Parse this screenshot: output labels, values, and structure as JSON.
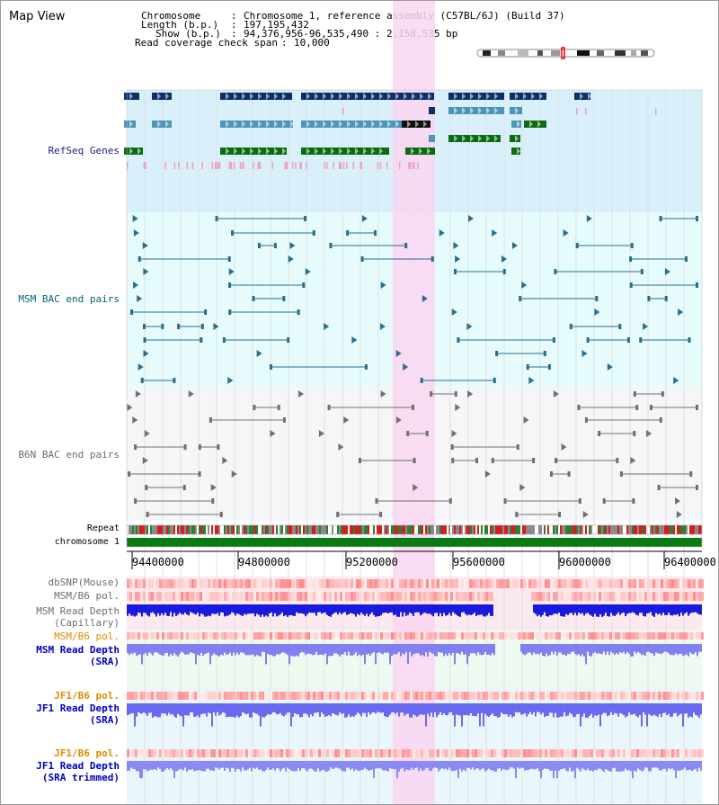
{
  "window_title": "Map View",
  "info": {
    "chromosome_label": "Chromosome",
    "chromosome_value": "Chromosome 1, reference assembly (C57BL/6J) (Build 37)",
    "length_label": "Length (b.p.)",
    "length_value": "197,195,432",
    "show_label": "Show (b.p.)",
    "show_value": "94,376,956-96,535,490 : 2,158,535 bp",
    "coverage_label": "Read coverage check span",
    "coverage_value": "10,000"
  },
  "tracks": {
    "refseq": "RefSeq Genes",
    "msm_bac": "MSM BAC end pairs",
    "b6n_bac": "B6N BAC end pairs",
    "repeat": "Repeat",
    "chromosome": "chromosome 1"
  },
  "axis": {
    "ticks": [
      "94400000",
      "94800000",
      "95200000",
      "95600000",
      "96000000",
      "96400000"
    ]
  },
  "lower_tracks": {
    "dbsnp": "dbSNP(Mouse)",
    "msm_b6_pol_1": "MSM/B6 pol.",
    "msm_read_depth_cap_1": "MSM Read Depth",
    "msm_read_depth_cap_2": "(Capillary)",
    "msm_b6_pol_2": "MSM/B6 pol.",
    "msm_read_depth_sra_1": "MSM Read Depth",
    "msm_read_depth_sra_2": "(SRA)",
    "jf1_b6_pol_1": "JF1/B6 pol.",
    "jf1_read_depth_sra_1": "JF1 Read Depth",
    "jf1_read_depth_sra_2": "(SRA)",
    "jf1_b6_pol_2": "JF1/B6 pol.",
    "jf1_read_depth_trim_1": "JF1 Read Depth",
    "jf1_read_depth_trim_2": "(SRA trimmed)"
  },
  "colors": {
    "refseq_bg": "#d9f0fb",
    "msm_bac_bg": "#e6fbfb",
    "b6n_bac_bg": "#f5f6f8",
    "highlight": "#f9d6f1",
    "gene_dark": "#0c2f68",
    "gene_mid": "#4b95b8",
    "gene_green": "#0a6b12",
    "bac_teal": "#2b6e8c",
    "bac_gray": "#707070",
    "label_navy": "#1a237e",
    "label_teal": "#00647a",
    "label_gray": "#6d6d6d",
    "label_orange": "#e08a00",
    "label_blue": "#0000c0"
  }
}
